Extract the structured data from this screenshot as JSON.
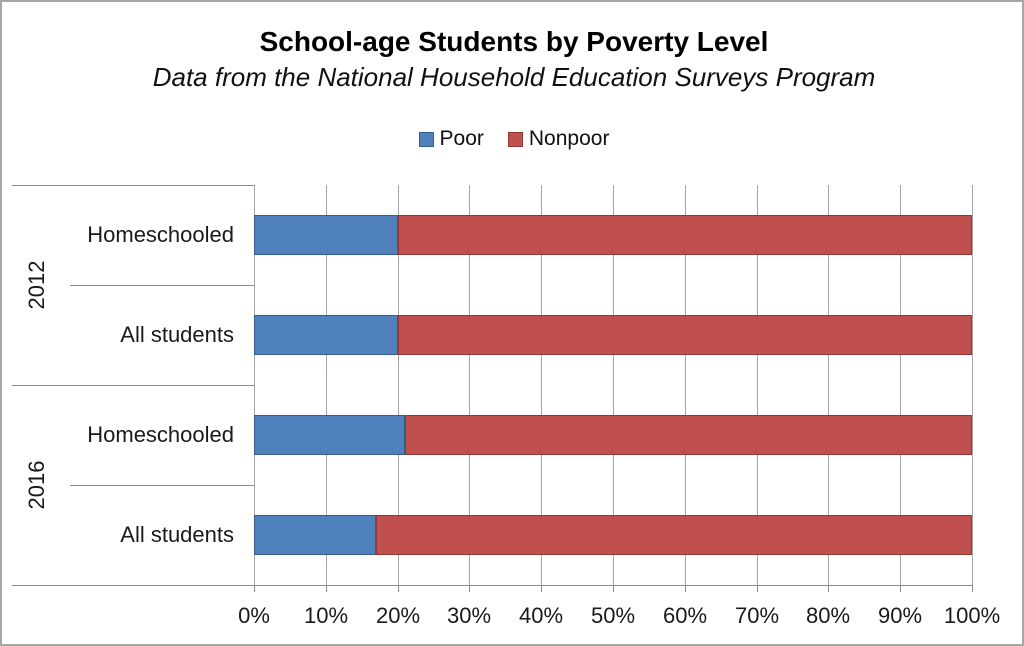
{
  "title": "School-age Students by Poverty Level",
  "subtitle": "Data from the National Household Education Surveys Program",
  "chart_data": {
    "type": "bar",
    "orientation": "horizontal",
    "stacked": true,
    "title": "School-age Students by Poverty Level",
    "subtitle": "Data from the National Household Education Surveys Program",
    "groups": [
      {
        "label": "2012",
        "categories": [
          "Homeschooled",
          "All students"
        ]
      },
      {
        "label": "2016",
        "categories": [
          "Homeschooled",
          "All students"
        ]
      }
    ],
    "categories": [
      "2012 Homeschooled",
      "2012 All students",
      "2016 Homeschooled",
      "2016 All students"
    ],
    "series": [
      {
        "name": "Poor",
        "color": "#4F81BD",
        "border_color": "#385D8A",
        "values": [
          20,
          20,
          21,
          17
        ]
      },
      {
        "name": "Nonpoor",
        "color": "#C0504D",
        "border_color": "#953735",
        "values": [
          80,
          80,
          79,
          83
        ]
      }
    ],
    "xlim": [
      0,
      100
    ],
    "x_ticks": [
      "0%",
      "10%",
      "20%",
      "30%",
      "40%",
      "50%",
      "60%",
      "70%",
      "80%",
      "90%",
      "100%"
    ],
    "x_tick_values": [
      0,
      10,
      20,
      30,
      40,
      50,
      60,
      70,
      80,
      90,
      100
    ],
    "xlabel": "",
    "ylabel": "",
    "grid": true,
    "legend_position": "top-center"
  },
  "colors": {
    "poor": "#4F81BD",
    "poor_border": "#385D8A",
    "nonpoor": "#C0504D",
    "nonpoor_border": "#953735",
    "gridline": "#A6A6A6",
    "axis": "#8C8C8C",
    "frame_border": "#A6A6A6",
    "text": "#1a1a1a"
  }
}
